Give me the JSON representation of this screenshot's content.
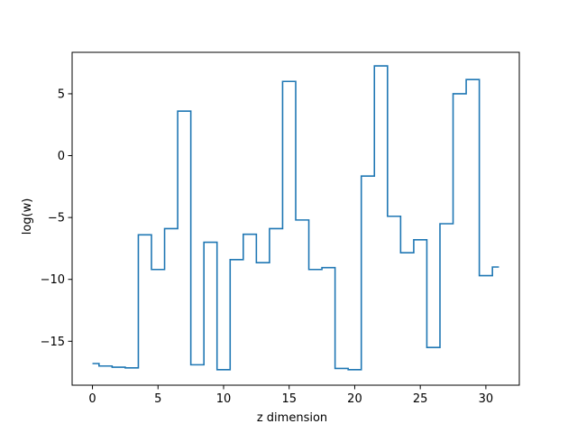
{
  "chart_data": {
    "type": "line",
    "step": "mid",
    "xlabel": "z dimension",
    "ylabel": "log(w)",
    "xlim": [
      -1.55,
      32.55
    ],
    "ylim": [
      -18.55,
      8.35
    ],
    "xticks": [
      0,
      5,
      10,
      15,
      20,
      25,
      30
    ],
    "yticks": [
      -15,
      -10,
      -5,
      0,
      5
    ],
    "line_color": "#1f77b4",
    "grid": false,
    "series": [
      {
        "x": [
          0,
          1,
          2,
          3,
          4,
          5,
          6,
          7,
          8,
          9,
          10,
          11,
          12,
          13,
          14,
          15,
          16,
          17,
          18,
          19,
          20,
          21,
          22,
          23,
          24,
          25,
          26,
          27,
          28,
          29,
          30,
          31
        ],
        "values": [
          -16.8,
          -17.0,
          -17.1,
          -17.15,
          -6.4,
          -9.2,
          -5.9,
          3.6,
          -16.9,
          -7.0,
          -17.3,
          -8.4,
          -6.35,
          -8.65,
          -5.9,
          6.0,
          -5.2,
          -9.2,
          -9.05,
          -17.2,
          -17.3,
          -1.65,
          7.25,
          -4.9,
          -7.85,
          -6.8,
          -15.5,
          -5.5,
          5.0,
          6.15,
          -9.7,
          -9.0
        ]
      }
    ]
  }
}
